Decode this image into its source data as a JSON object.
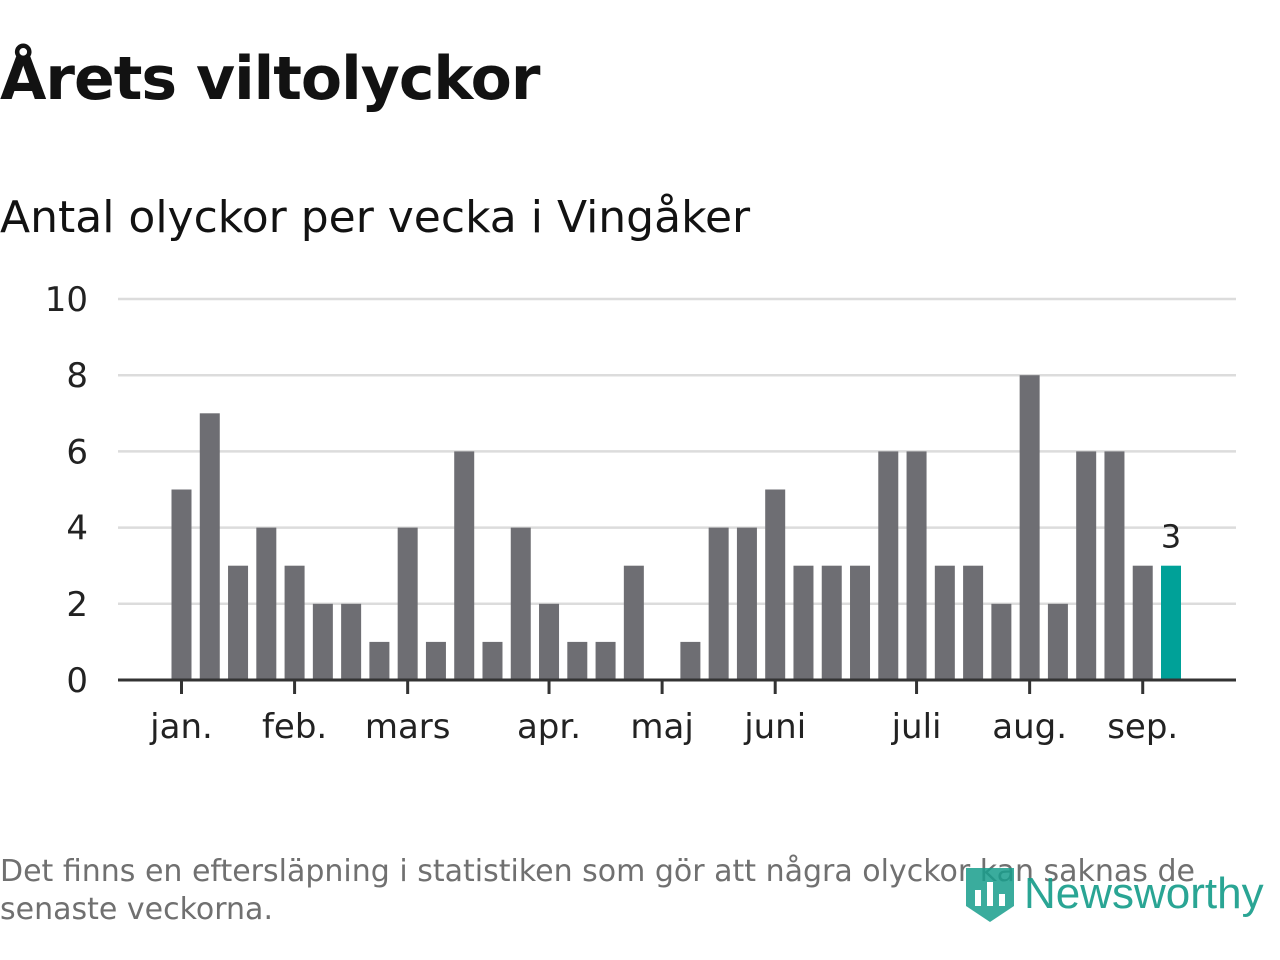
{
  "header": {
    "title": "Årets viltolyckor",
    "subtitle": "Antal olyckor per vecka i Vingåker"
  },
  "footnote": "Det finns en eftersläpning i statistiken som gör att några olyckor kan saknas de senaste veckorna.",
  "brand": {
    "name": "Newsworthy",
    "icon": "bar-chart-shield-icon",
    "color": "#189e8c"
  },
  "chart_data": {
    "type": "bar",
    "title": "",
    "xlabel": "",
    "ylabel": "",
    "ylim": [
      0,
      10
    ],
    "yticks": [
      0,
      2,
      4,
      6,
      8,
      10
    ],
    "grid": true,
    "x": [
      2,
      3,
      4,
      5,
      6,
      7,
      8,
      9,
      10,
      11,
      12,
      13,
      14,
      15,
      16,
      17,
      18,
      19,
      20,
      21,
      22,
      23,
      24,
      25,
      26,
      27,
      28,
      29,
      30,
      31,
      32,
      33,
      34,
      35,
      36,
      37
    ],
    "values": [
      5,
      7,
      3,
      4,
      3,
      2,
      2,
      1,
      4,
      1,
      6,
      1,
      4,
      2,
      1,
      1,
      3,
      0,
      1,
      4,
      4,
      5,
      3,
      3,
      3,
      6,
      6,
      3,
      3,
      2,
      8,
      2,
      6,
      6,
      3,
      3
    ],
    "month_labels": [
      {
        "label": "jan.",
        "week": 2
      },
      {
        "label": "feb.",
        "week": 6
      },
      {
        "label": "mars",
        "week": 10
      },
      {
        "label": "apr.",
        "week": 15
      },
      {
        "label": "maj",
        "week": 19
      },
      {
        "label": "juni",
        "week": 23
      },
      {
        "label": "juli",
        "week": 28
      },
      {
        "label": "aug.",
        "week": 32
      },
      {
        "label": "sep.",
        "week": 36
      }
    ],
    "highlight": {
      "week": 37,
      "value": 3,
      "label": "3"
    },
    "colors": {
      "bar": "#6e6e73",
      "highlight": "#00a198",
      "grid": "#dcdcdc",
      "axis": "#333333"
    }
  }
}
